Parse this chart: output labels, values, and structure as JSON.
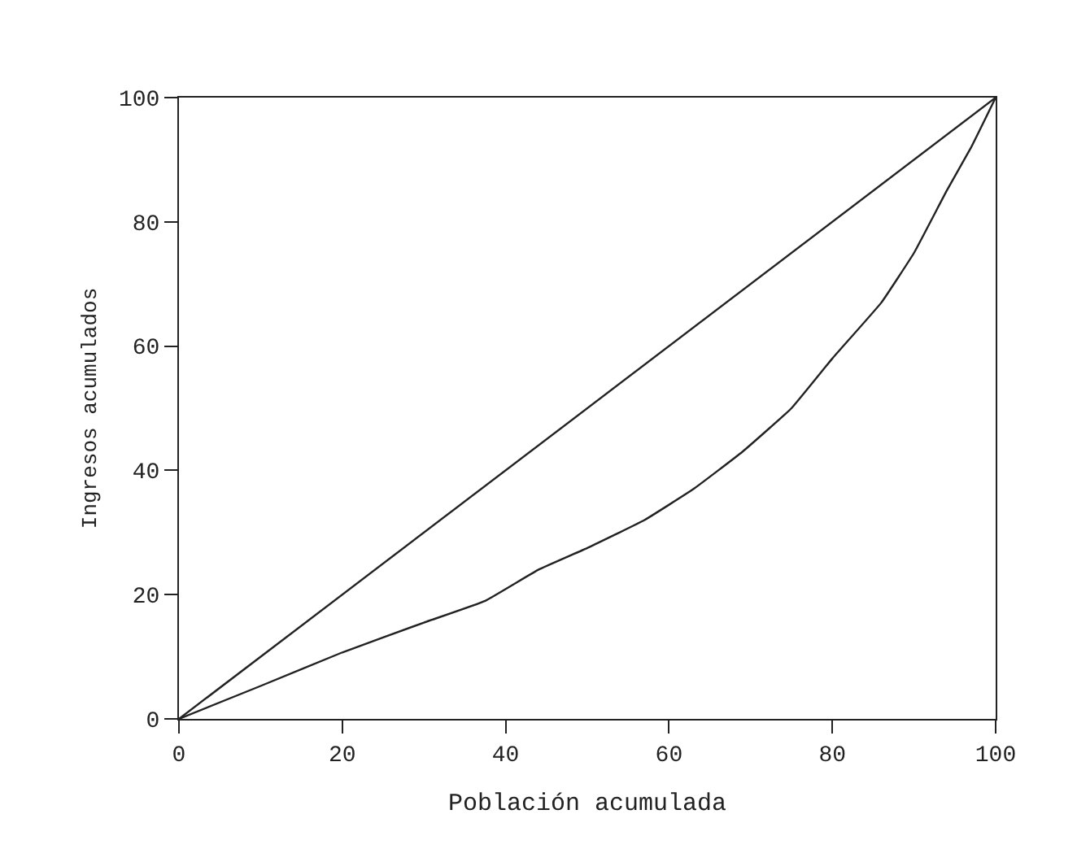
{
  "chart_data": {
    "type": "line",
    "xlabel": "Población acumulada",
    "ylabel": "Ingresos acumulados",
    "series": [
      {
        "color": "#222222",
        "x": [
          0,
          100
        ],
        "values": [
          0,
          100
        ]
      },
      {
        "color": "#222222",
        "x": [
          0,
          10,
          20,
          30,
          37.5,
          44,
          50,
          57,
          63,
          69,
          75,
          80,
          86,
          90,
          94,
          97,
          100
        ],
        "values": [
          0,
          5.3,
          10.7,
          15.5,
          19,
          24,
          27.5,
          32,
          37,
          43,
          50,
          58,
          67,
          75,
          85,
          92,
          100
        ]
      }
    ],
    "xlim": [
      0,
      100
    ],
    "ylim": [
      0,
      100
    ],
    "xticks": [
      0,
      20,
      40,
      60,
      80,
      100
    ],
    "yticks": [
      0,
      20,
      40,
      60,
      80,
      100
    ],
    "legend": false,
    "marker": "none",
    "line_style": "solid"
  }
}
